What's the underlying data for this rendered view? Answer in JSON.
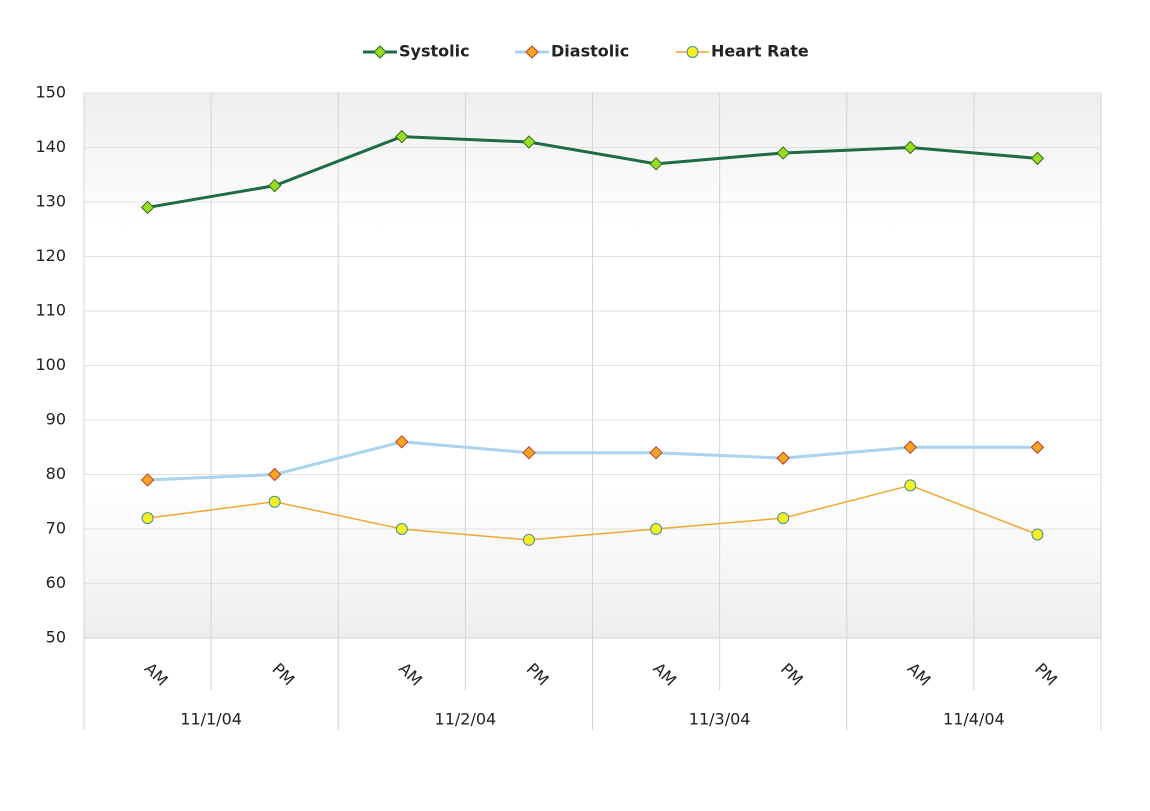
{
  "chart_data": {
    "type": "line",
    "categories": [
      "AM",
      "PM",
      "AM",
      "PM",
      "AM",
      "PM",
      "AM",
      "PM"
    ],
    "groups": [
      "11/1/04",
      "11/2/04",
      "11/3/04",
      "11/4/04"
    ],
    "series": [
      {
        "name": "Systolic",
        "color": "#1e6b45",
        "marker": "diamond",
        "marker_color": "#99dd22",
        "values": [
          129,
          133,
          142,
          141,
          137,
          139,
          140,
          138
        ]
      },
      {
        "name": "Diastolic",
        "color": "#a8d4f0",
        "marker": "diamond",
        "marker_color": "#f5a623",
        "values": [
          79,
          80,
          86,
          84,
          84,
          83,
          85,
          85
        ]
      },
      {
        "name": "Heart Rate",
        "color": "#f0a830",
        "marker": "circle",
        "marker_color": "#f2f020",
        "values": [
          72,
          75,
          70,
          68,
          70,
          72,
          78,
          69
        ]
      }
    ],
    "ylim": [
      50,
      150
    ],
    "yticks": [
      50,
      60,
      70,
      80,
      90,
      100,
      110,
      120,
      130,
      140,
      150
    ],
    "grid": true,
    "legend": "top"
  }
}
